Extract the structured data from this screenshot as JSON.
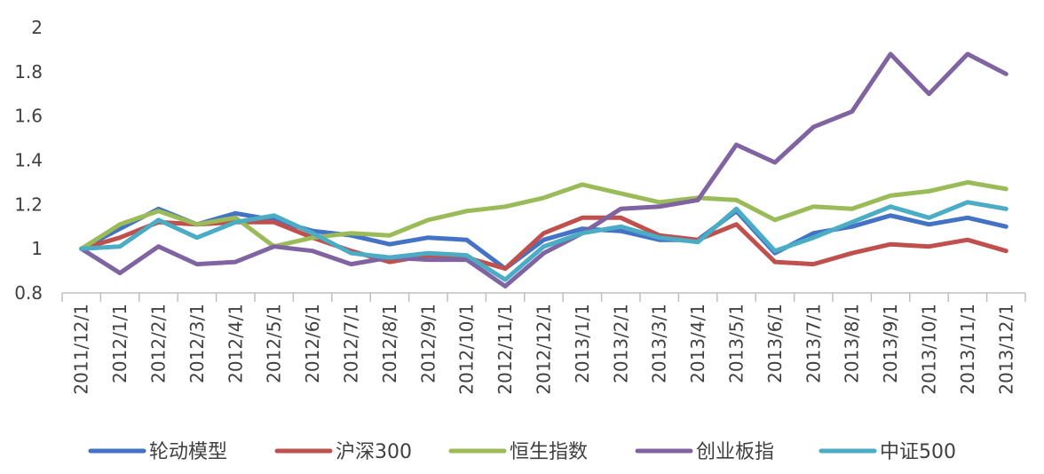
{
  "chart_data": {
    "type": "line",
    "title": "",
    "xlabel": "",
    "ylabel": "",
    "ylim": [
      0.8,
      2.0
    ],
    "yticks": [
      "0.8",
      "1",
      "1.2",
      "1.4",
      "1.6",
      "1.8",
      "2"
    ],
    "grid": false,
    "legend_position": "bottom",
    "categories": [
      "2011/12/1",
      "2012/1/1",
      "2012/2/1",
      "2012/3/1",
      "2012/4/1",
      "2012/5/1",
      "2012/6/1",
      "2012/7/1",
      "2012/8/1",
      "2012/9/1",
      "2012/10/1",
      "2012/11/1",
      "2012/12/1",
      "2013/1/1",
      "2013/2/1",
      "2013/3/1",
      "2013/4/1",
      "2013/5/1",
      "2013/6/1",
      "2013/7/1",
      "2013/8/1",
      "2013/9/1",
      "2013/10/1",
      "2013/11/1",
      "2013/12/1"
    ],
    "series": [
      {
        "name": "轮动模型",
        "color": "#4472C4",
        "values": [
          1.0,
          1.09,
          1.18,
          1.11,
          1.16,
          1.13,
          1.08,
          1.06,
          1.02,
          1.05,
          1.04,
          0.91,
          1.04,
          1.09,
          1.08,
          1.04,
          1.04,
          1.17,
          0.98,
          1.07,
          1.1,
          1.15,
          1.11,
          1.14,
          1.1
        ]
      },
      {
        "name": "沪深300",
        "color": "#C0504D",
        "values": [
          1.0,
          1.05,
          1.12,
          1.11,
          1.12,
          1.12,
          1.05,
          0.99,
          0.94,
          0.97,
          0.96,
          0.91,
          1.07,
          1.14,
          1.14,
          1.06,
          1.04,
          1.11,
          0.94,
          0.93,
          0.98,
          1.02,
          1.01,
          1.04,
          0.99
        ]
      },
      {
        "name": "恒生指数",
        "color": "#9BBB59",
        "values": [
          1.0,
          1.11,
          1.17,
          1.11,
          1.14,
          1.01,
          1.05,
          1.07,
          1.06,
          1.13,
          1.17,
          1.19,
          1.23,
          1.29,
          1.25,
          1.21,
          1.23,
          1.22,
          1.13,
          1.19,
          1.18,
          1.24,
          1.26,
          1.3,
          1.27
        ]
      },
      {
        "name": "创业板指",
        "color": "#8064A2",
        "values": [
          1.0,
          0.89,
          1.01,
          0.93,
          0.94,
          1.01,
          0.99,
          0.93,
          0.96,
          0.95,
          0.95,
          0.83,
          0.98,
          1.07,
          1.18,
          1.19,
          1.22,
          1.47,
          1.39,
          1.55,
          1.62,
          1.88,
          1.7,
          1.88,
          1.79
        ]
      },
      {
        "name": "中证500",
        "color": "#4BACC6",
        "values": [
          1.0,
          1.01,
          1.13,
          1.05,
          1.12,
          1.15,
          1.07,
          0.98,
          0.96,
          0.98,
          0.97,
          0.86,
          1.01,
          1.07,
          1.1,
          1.05,
          1.03,
          1.18,
          0.99,
          1.05,
          1.12,
          1.19,
          1.14,
          1.21,
          1.18
        ]
      }
    ]
  }
}
